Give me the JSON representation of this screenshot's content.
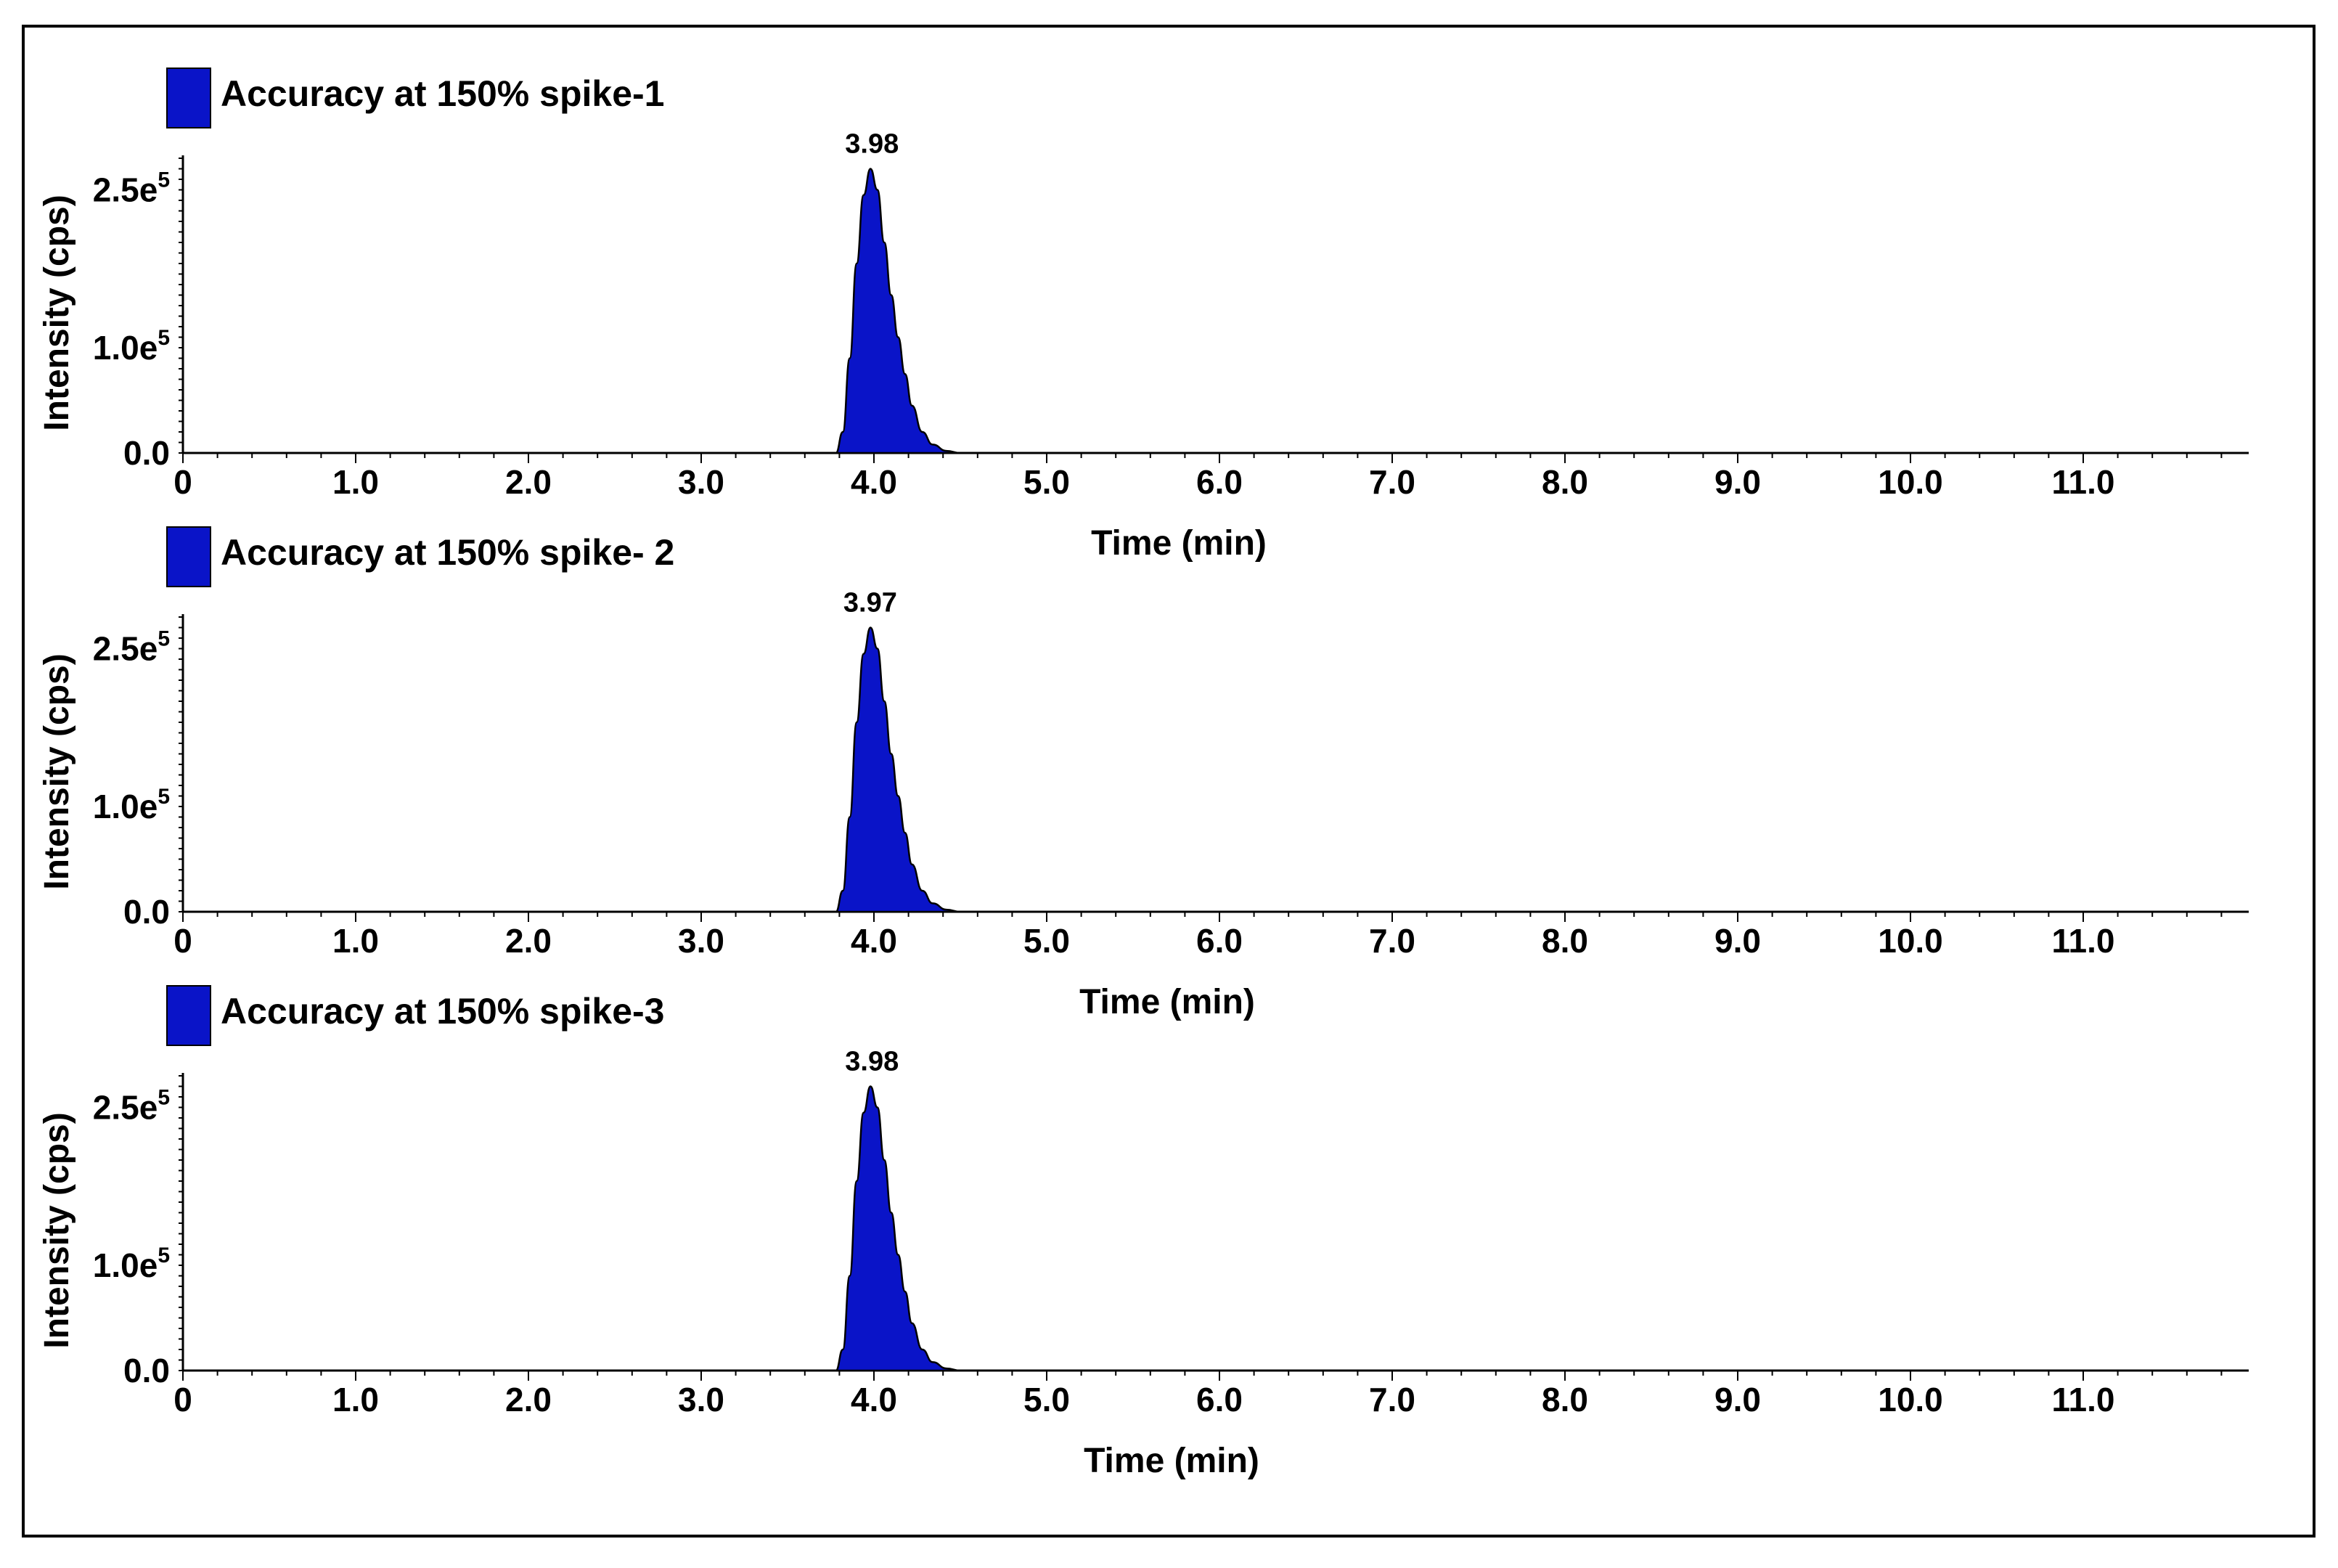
{
  "colors": {
    "peak_fill": "#0a14c8",
    "peak_stroke": "#000000",
    "axis": "#000000"
  },
  "chart_data": [
    {
      "type": "area",
      "legend": "Accuracy at 150% spike-1",
      "peak_label": "3.98",
      "peak_rt": 3.98,
      "peak_height": 270000,
      "xlabel": "Time (min)",
      "ylabel": "Intensity (cps)",
      "xlim": [
        0,
        12
      ],
      "ylim": [
        0,
        280000
      ],
      "x_ticks": [
        0,
        1,
        2,
        3,
        4,
        5,
        6,
        7,
        8,
        9,
        10,
        11
      ],
      "x_tick_labels": [
        "0",
        "1.0",
        "2.0",
        "3.0",
        "4.0",
        "5.0",
        "6.0",
        "7.0",
        "8.0",
        "9.0",
        "10.0",
        "11.0"
      ],
      "y_ticks": [
        0,
        100000,
        250000
      ],
      "y_tick_mantissa": [
        "0.0",
        "1.0e",
        "2.5e"
      ],
      "y_tick_exponent": [
        "",
        "5",
        "5"
      ],
      "x": [
        3.78,
        3.82,
        3.86,
        3.9,
        3.94,
        3.98,
        4.02,
        4.06,
        4.1,
        4.14,
        4.18,
        4.22,
        4.28,
        4.34,
        4.42,
        4.5
      ],
      "y": [
        0,
        20000,
        90000,
        180000,
        245000,
        270000,
        250000,
        200000,
        150000,
        110000,
        75000,
        45000,
        20000,
        8000,
        2000,
        0
      ]
    },
    {
      "type": "area",
      "legend": "Accuracy at 150% spike- 2",
      "peak_label": "3.97",
      "peak_rt": 3.97,
      "peak_height": 270000,
      "xlabel": "Time (min)",
      "ylabel": "Intensity (cps)",
      "xlim": [
        0,
        12
      ],
      "ylim": [
        0,
        280000
      ],
      "x_ticks": [
        0,
        1,
        2,
        3,
        4,
        5,
        6,
        7,
        8,
        9,
        10,
        11
      ],
      "x_tick_labels": [
        "0",
        "1.0",
        "2.0",
        "3.0",
        "4.0",
        "5.0",
        "6.0",
        "7.0",
        "8.0",
        "9.0",
        "10.0",
        "11.0"
      ],
      "y_ticks": [
        0,
        100000,
        250000
      ],
      "y_tick_mantissa": [
        "0.0",
        "1.0e",
        "2.5e"
      ],
      "y_tick_exponent": [
        "",
        "5",
        "5"
      ],
      "x": [
        3.78,
        3.82,
        3.86,
        3.9,
        3.94,
        3.98,
        4.02,
        4.06,
        4.1,
        4.14,
        4.18,
        4.22,
        4.28,
        4.34,
        4.42,
        4.5
      ],
      "y": [
        0,
        20000,
        90000,
        180000,
        245000,
        270000,
        250000,
        200000,
        150000,
        110000,
        75000,
        45000,
        20000,
        8000,
        2000,
        0
      ]
    },
    {
      "type": "area",
      "legend": "Accuracy at 150% spike-3",
      "peak_label": "3.98",
      "peak_rt": 3.98,
      "peak_height": 270000,
      "xlabel": "Time (min)",
      "ylabel": "Intensity (cps)",
      "xlim": [
        0,
        12
      ],
      "ylim": [
        0,
        280000
      ],
      "x_ticks": [
        0,
        1,
        2,
        3,
        4,
        5,
        6,
        7,
        8,
        9,
        10,
        11
      ],
      "x_tick_labels": [
        "0",
        "1.0",
        "2.0",
        "3.0",
        "4.0",
        "5.0",
        "6.0",
        "7.0",
        "8.0",
        "9.0",
        "10.0",
        "11.0"
      ],
      "y_ticks": [
        0,
        100000,
        250000
      ],
      "y_tick_mantissa": [
        "0.0",
        "1.0e",
        "2.5e"
      ],
      "y_tick_exponent": [
        "",
        "5",
        "5"
      ],
      "x": [
        3.78,
        3.82,
        3.86,
        3.9,
        3.94,
        3.98,
        4.02,
        4.06,
        4.1,
        4.14,
        4.18,
        4.22,
        4.28,
        4.34,
        4.42,
        4.5
      ],
      "y": [
        0,
        20000,
        90000,
        180000,
        245000,
        270000,
        250000,
        200000,
        150000,
        110000,
        75000,
        45000,
        20000,
        8000,
        2000,
        0
      ]
    }
  ]
}
